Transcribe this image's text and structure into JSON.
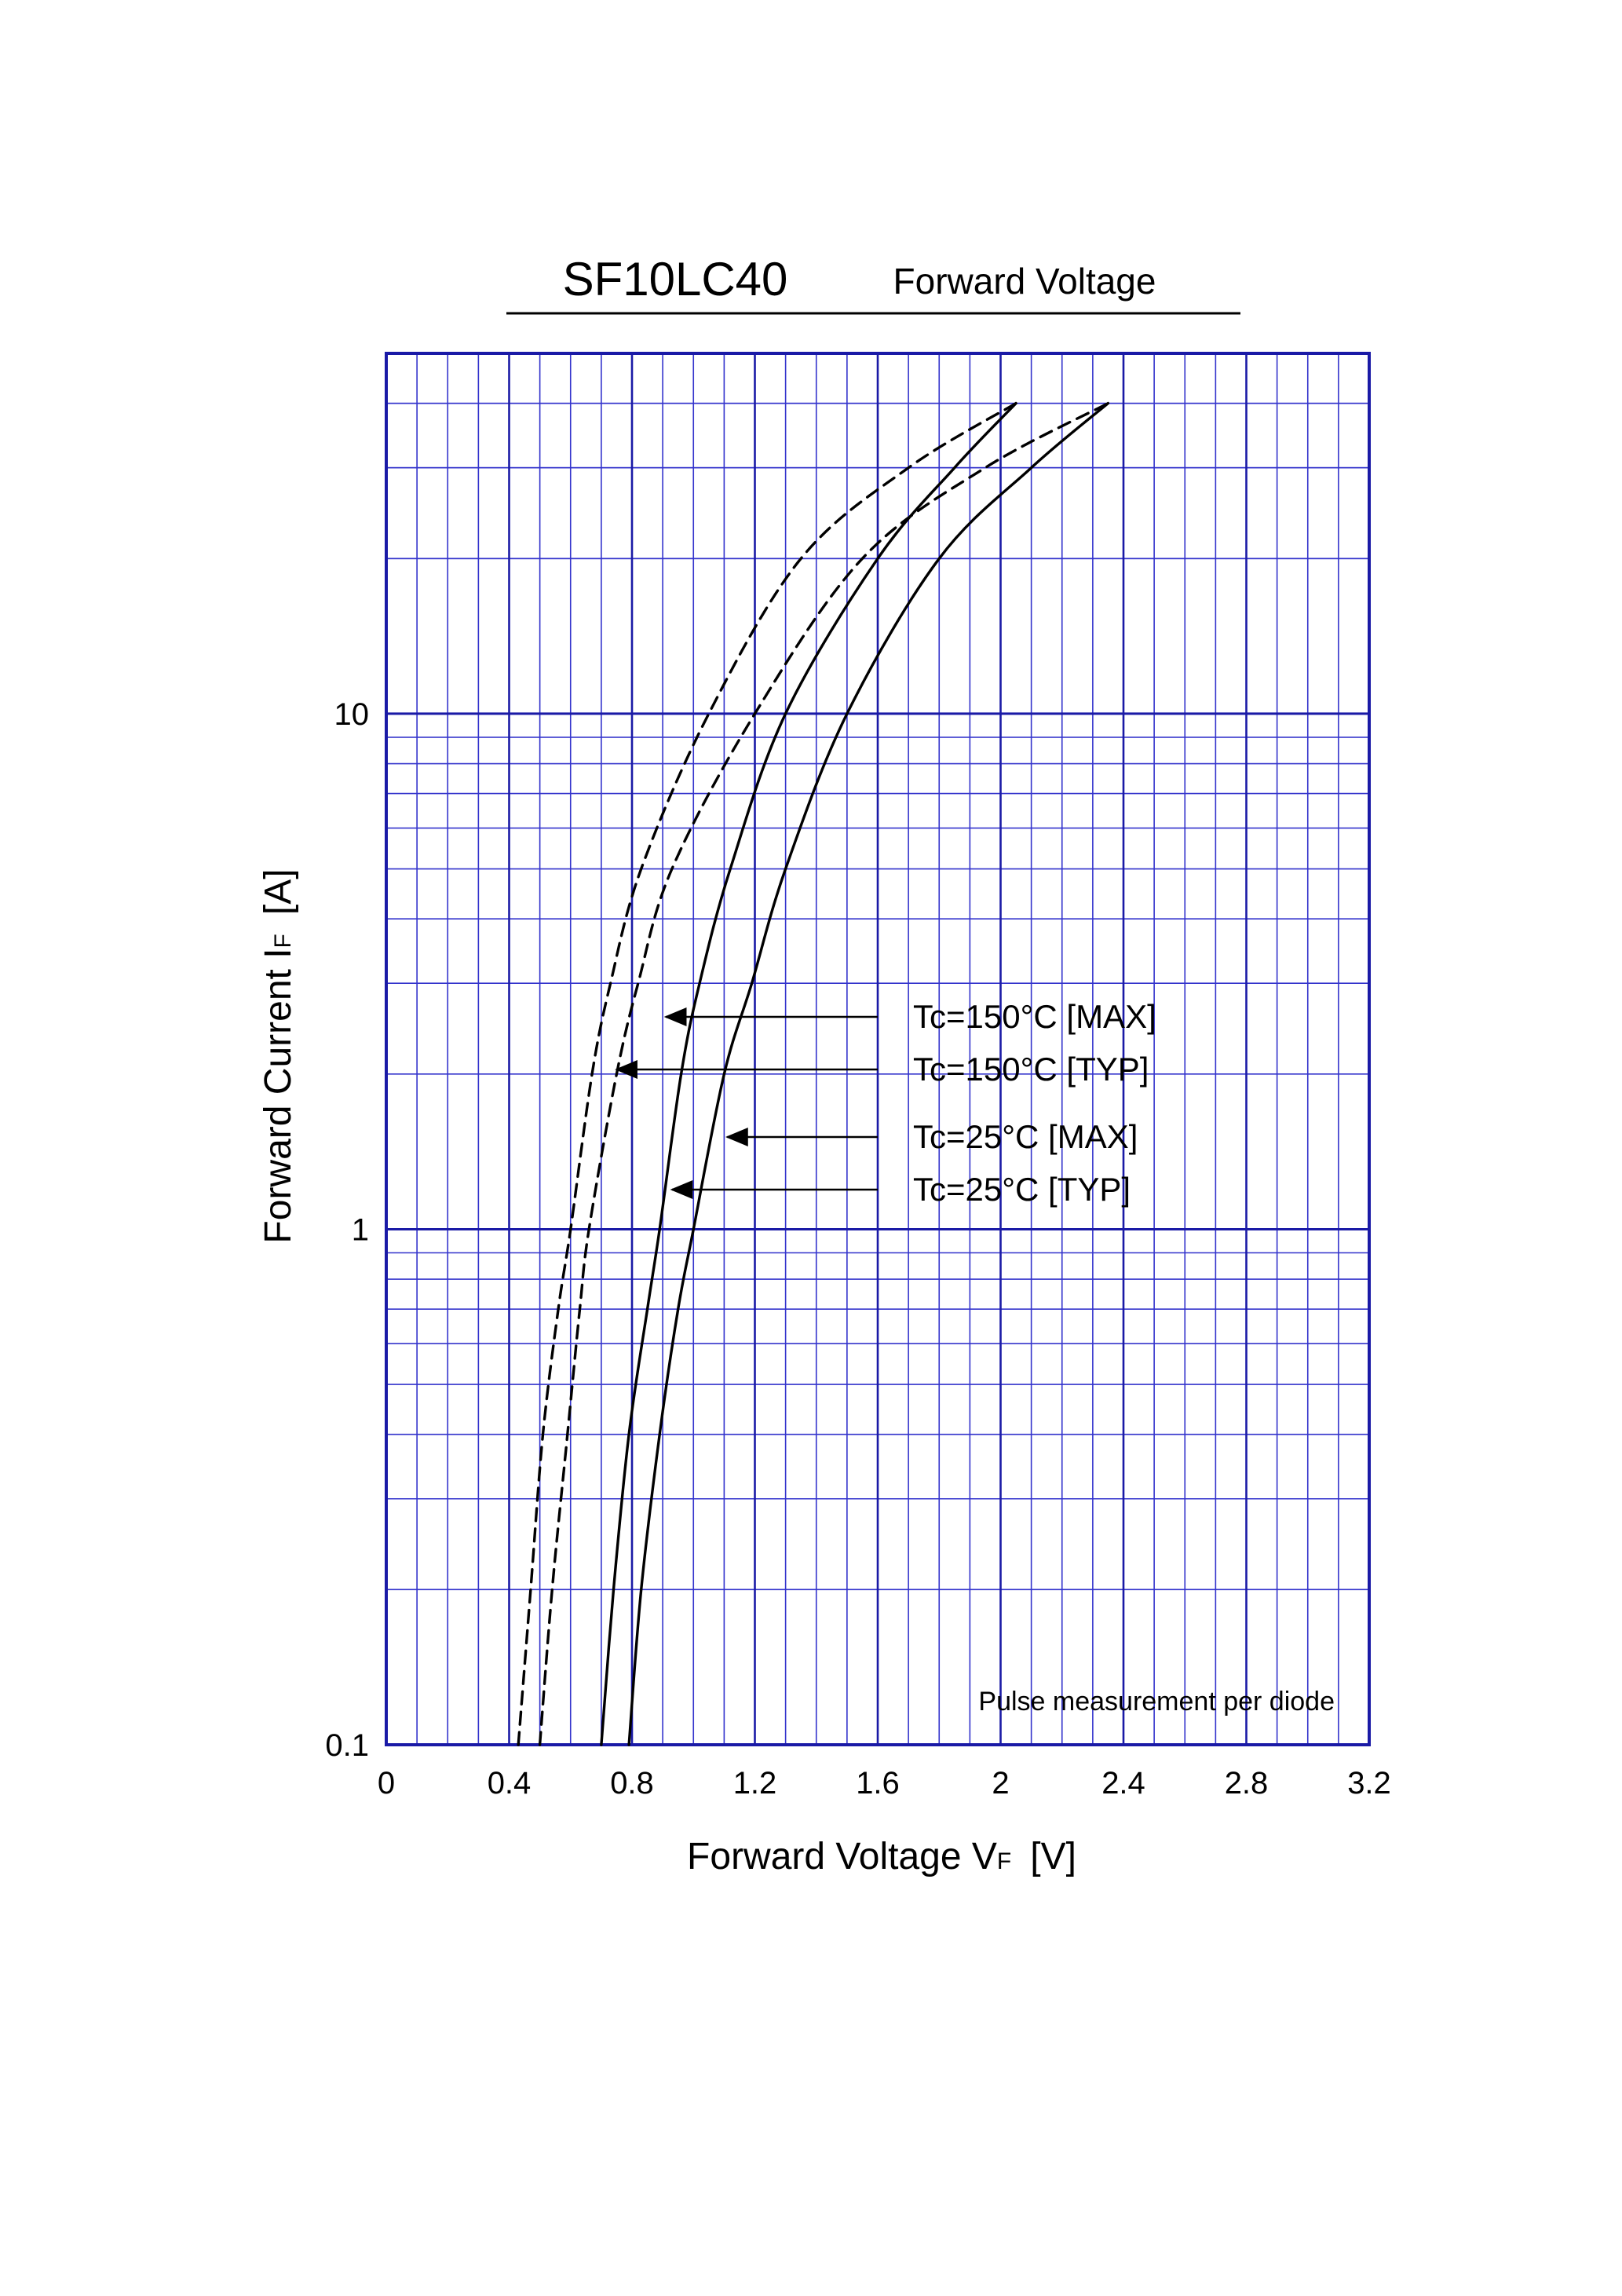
{
  "chart_data": {
    "type": "line",
    "title": "SF10LC40",
    "subtitle": "Forward Voltage",
    "xlabel": {
      "main": "Forward Voltage  V",
      "sub": "F",
      "unit": "[V]"
    },
    "ylabel": {
      "main": "Forward Current  I",
      "sub": "F",
      "unit": "[A]"
    },
    "x_scale": "linear",
    "y_scale": "log",
    "xlim": [
      0,
      3.2
    ],
    "ylim": [
      0.1,
      50
    ],
    "x_ticks": [
      0,
      0.4,
      0.8,
      1.2,
      1.6,
      2,
      2.4,
      2.8,
      3.2
    ],
    "x_tick_labels": [
      "0",
      "0.4",
      "0.8",
      "1.2",
      "1.6",
      "2",
      "2.4",
      "2.8",
      "3.2"
    ],
    "y_ticks": [
      0.1,
      1,
      10
    ],
    "y_tick_labels": [
      "0.1",
      "1",
      "10"
    ],
    "grid": true,
    "annotation": "Pulse measurement per diode",
    "colors": {
      "grid": "#3333cc",
      "grid_major": "#1a1aa6",
      "curve": "#000000"
    },
    "series": [
      {
        "name": "Tc=150°C [MAX]",
        "style": "dashed",
        "points": [
          [
            0.5,
            0.1
          ],
          [
            0.54,
            0.2
          ],
          [
            0.59,
            0.4
          ],
          [
            0.63,
            0.7
          ],
          [
            0.66,
            1
          ],
          [
            0.75,
            2
          ],
          [
            0.82,
            3
          ],
          [
            0.93,
            5
          ],
          [
            1.2,
            10
          ],
          [
            1.55,
            20
          ],
          [
            1.95,
            30
          ],
          [
            2.35,
            40
          ]
        ]
      },
      {
        "name": "Tc=150°C [TYP]",
        "style": "dashed",
        "points": [
          [
            0.43,
            0.1
          ],
          [
            0.47,
            0.2
          ],
          [
            0.51,
            0.4
          ],
          [
            0.56,
            0.7
          ],
          [
            0.6,
            1
          ],
          [
            0.67,
            2
          ],
          [
            0.73,
            3
          ],
          [
            0.83,
            5
          ],
          [
            1.05,
            10
          ],
          [
            1.35,
            20
          ],
          [
            1.7,
            30
          ],
          [
            2.05,
            40
          ]
        ]
      },
      {
        "name": "Tc=25°C [MAX]",
        "style": "solid",
        "points": [
          [
            0.79,
            0.1
          ],
          [
            0.83,
            0.2
          ],
          [
            0.89,
            0.4
          ],
          [
            0.95,
            0.7
          ],
          [
            1.0,
            1
          ],
          [
            1.1,
            2
          ],
          [
            1.19,
            3
          ],
          [
            1.3,
            5
          ],
          [
            1.5,
            10
          ],
          [
            1.8,
            20
          ],
          [
            2.1,
            30
          ],
          [
            2.35,
            40
          ]
        ]
      },
      {
        "name": "Tc=25°C [TYP]",
        "style": "solid",
        "points": [
          [
            0.7,
            0.1
          ],
          [
            0.74,
            0.2
          ],
          [
            0.79,
            0.4
          ],
          [
            0.85,
            0.7
          ],
          [
            0.89,
            1
          ],
          [
            0.96,
            2
          ],
          [
            1.02,
            3
          ],
          [
            1.12,
            5
          ],
          [
            1.3,
            10
          ],
          [
            1.6,
            20
          ],
          [
            1.85,
            30
          ],
          [
            2.05,
            40
          ]
        ]
      }
    ],
    "legend": [
      {
        "label": "Tc=150°C [MAX]",
        "series": "Tc=150°C [MAX]",
        "arrow_to": [
          0.9,
          2.8
        ]
      },
      {
        "label": "Tc=150°C [TYP]",
        "series": "Tc=150°C [TYP]",
        "arrow_to": [
          0.74,
          2.2
        ]
      },
      {
        "label": "Tc=25°C [MAX]",
        "series": "Tc=25°C [MAX]",
        "arrow_to": [
          1.1,
          1.6
        ]
      },
      {
        "label": "Tc=25°C [TYP]",
        "series": "Tc=25°C [TYP]",
        "arrow_to": [
          0.92,
          1.25
        ]
      }
    ]
  }
}
